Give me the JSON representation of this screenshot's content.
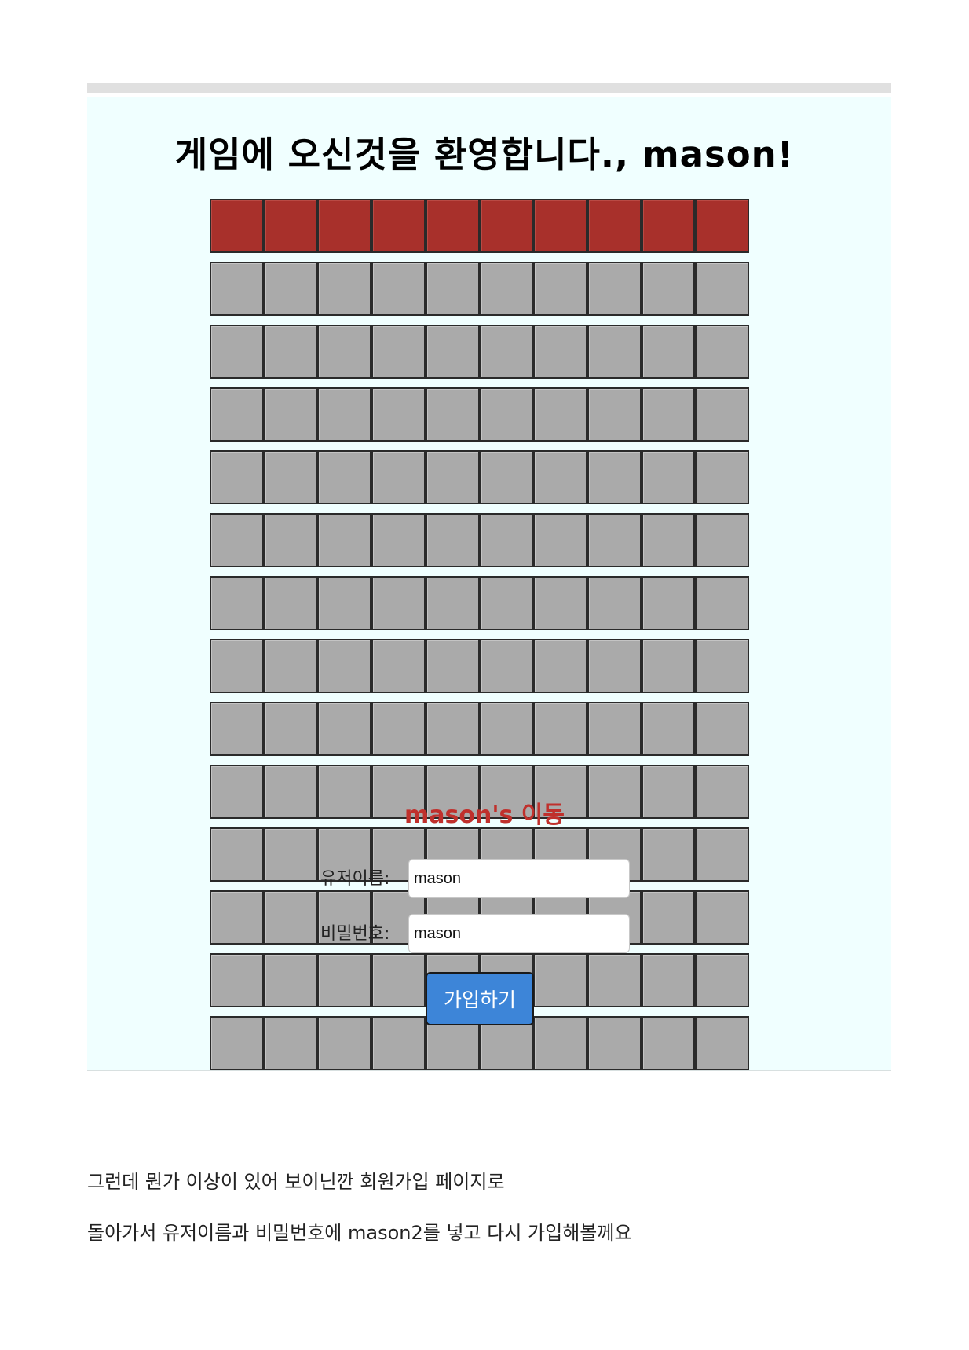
{
  "game": {
    "welcome": "게임에 오신것을 환영합니다., mason!",
    "board": {
      "columns": 10,
      "rows": 14,
      "filled_rows": 1,
      "cell_color": "#aaaaaa",
      "filled_color": "#a8302b"
    },
    "move_title": "mason's 이동",
    "form": {
      "username_label": "유저이름:",
      "username_value": "mason",
      "password_label": "비밀번호:",
      "password_value": "mason",
      "submit_label": "가입하기",
      "button_color": "#3d85d8"
    }
  },
  "article": {
    "paragraph_1": "그런데 뭔가 이상이 있어 보이닌깐 회원가입 페이지로",
    "paragraph_2": "돌아가서 유저이름과 비밀번호에 mason2를 넣고  다시 가입해볼께요"
  }
}
